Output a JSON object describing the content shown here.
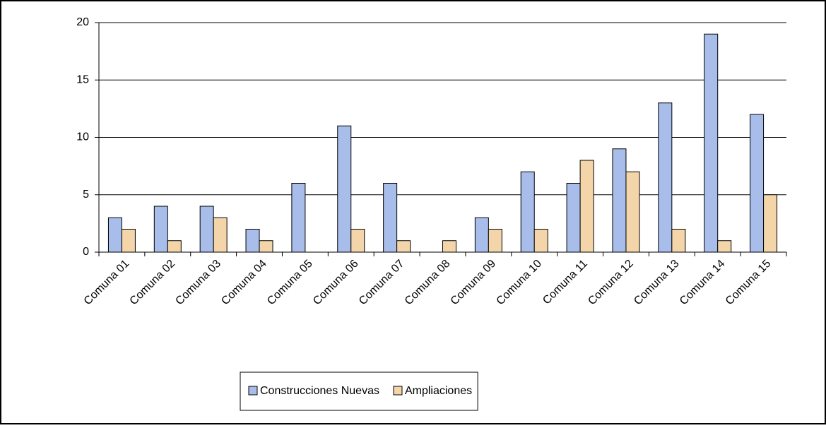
{
  "chart_data": {
    "type": "bar",
    "categories": [
      "Comuna 01",
      "Comuna 02",
      "Comuna 03",
      "Comuna 04",
      "Comuna 05",
      "Comuna 06",
      "Comuna 07",
      "Comuna 08",
      "Comuna 09",
      "Comuna 10",
      "Comuna 11",
      "Comuna 12",
      "Comuna 13",
      "Comuna 14",
      "Comuna 15"
    ],
    "series": [
      {
        "name": "Construcciones Nuevas",
        "color": "#a8bde9",
        "values": [
          3,
          4,
          4,
          2,
          6,
          11,
          6,
          0,
          3,
          7,
          6,
          9,
          13,
          19,
          12
        ]
      },
      {
        "name": "Ampliaciones",
        "color": "#f3d5a9",
        "values": [
          2,
          1,
          3,
          1,
          0,
          2,
          1,
          1,
          2,
          2,
          8,
          7,
          2,
          1,
          5
        ]
      }
    ],
    "ylim": [
      0,
      20
    ],
    "yticks": [
      0,
      5,
      10,
      15,
      20
    ],
    "grid": true,
    "legend": "bottom"
  }
}
